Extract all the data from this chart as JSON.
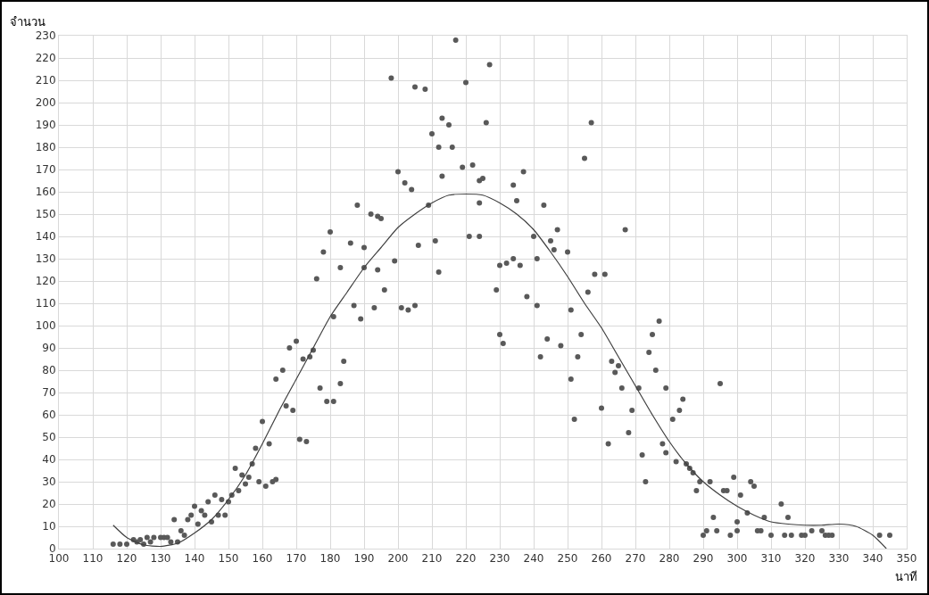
{
  "chart_data": {
    "type": "scatter",
    "xlabel": "นาที",
    "ylabel": "จำนวน",
    "xlim": [
      100,
      350
    ],
    "xticks": [
      100,
      110,
      120,
      130,
      140,
      150,
      160,
      170,
      180,
      190,
      200,
      210,
      220,
      230,
      240,
      250,
      260,
      270,
      280,
      290,
      300,
      310,
      320,
      330,
      340,
      350
    ],
    "ylim": [
      0,
      230
    ],
    "yticks": [
      0,
      10,
      20,
      30,
      40,
      50,
      60,
      70,
      80,
      90,
      100,
      110,
      120,
      130,
      140,
      150,
      160,
      170,
      180,
      190,
      200,
      210,
      220,
      230
    ],
    "grid": true,
    "series": [
      {
        "type": "scatter",
        "color": "#595959",
        "marker": "circle",
        "x": [
          116,
          118,
          120,
          122,
          123,
          124,
          125,
          126,
          127,
          128,
          130,
          131,
          132,
          133,
          134,
          135,
          136,
          137,
          138,
          139,
          140,
          141,
          142,
          143,
          144,
          145,
          146,
          147,
          148,
          149,
          150,
          151,
          152,
          153,
          154,
          155,
          156,
          157,
          158,
          159,
          160,
          161,
          162,
          163,
          164,
          164,
          166,
          167,
          168,
          169,
          170,
          171,
          172,
          173,
          174,
          175,
          176,
          177,
          178,
          179,
          180,
          181,
          181,
          183,
          183,
          184,
          186,
          187,
          188,
          189,
          190,
          190,
          192,
          193,
          194,
          194,
          195,
          196,
          198,
          199,
          200,
          201,
          202,
          203,
          204,
          205,
          205,
          206,
          208,
          209,
          210,
          211,
          212,
          212,
          213,
          213,
          215,
          216,
          217,
          219,
          220,
          221,
          222,
          224,
          224,
          224,
          225,
          226,
          227,
          229,
          230,
          230,
          231,
          232,
          234,
          234,
          235,
          236,
          237,
          238,
          240,
          241,
          241,
          242,
          243,
          244,
          245,
          246,
          247,
          248,
          250,
          251,
          251,
          252,
          253,
          254,
          255,
          256,
          257,
          258,
          260,
          261,
          262,
          263,
          264,
          265,
          266,
          267,
          268,
          269,
          271,
          272,
          273,
          274,
          275,
          276,
          277,
          278,
          279,
          279,
          281,
          282,
          283,
          284,
          285,
          286,
          287,
          288,
          289,
          290,
          291,
          292,
          293,
          294,
          295,
          296,
          297,
          298,
          299,
          300,
          300,
          301,
          303,
          304,
          305,
          306,
          307,
          308,
          310,
          313,
          314,
          315,
          316,
          319,
          320,
          322,
          325,
          326,
          327,
          328,
          342,
          345
        ],
        "values": [
          2,
          2,
          2,
          4,
          3,
          4,
          2,
          5,
          3,
          5,
          5,
          5,
          5,
          3,
          13,
          3,
          8,
          6,
          13,
          15,
          19,
          11,
          17,
          15,
          21,
          12,
          24,
          15,
          22,
          15,
          21,
          24,
          36,
          26,
          33,
          29,
          32,
          38,
          45,
          30,
          57,
          28,
          47,
          30,
          76,
          31,
          80,
          64,
          90,
          62,
          93,
          49,
          85,
          48,
          86,
          89,
          121,
          72,
          133,
          66,
          142,
          66,
          104,
          74,
          126,
          84,
          137,
          109,
          154,
          103,
          135,
          126,
          150,
          108,
          149,
          125,
          148,
          116,
          211,
          129,
          169,
          108,
          164,
          107,
          161,
          207,
          109,
          136,
          206,
          154,
          186,
          138,
          180,
          124,
          193,
          167,
          190,
          180,
          228,
          171,
          209,
          140,
          172,
          155,
          165,
          140,
          166,
          191,
          217,
          116,
          127,
          96,
          92,
          128,
          130,
          163,
          156,
          127,
          169,
          113,
          140,
          130,
          109,
          86,
          154,
          94,
          138,
          134,
          143,
          91,
          133,
          107,
          76,
          58,
          86,
          96,
          175,
          115,
          191,
          123,
          63,
          123,
          47,
          84,
          79,
          82,
          72,
          143,
          52,
          62,
          72,
          42,
          30,
          88,
          96,
          80,
          102,
          47,
          72,
          43,
          58,
          39,
          62,
          67,
          38,
          36,
          34,
          26,
          30,
          6,
          8,
          30,
          14,
          8,
          74,
          26,
          26,
          6,
          32,
          8,
          12,
          24,
          16,
          30,
          28,
          8,
          8,
          14,
          6,
          20,
          6,
          14,
          6,
          6,
          6,
          8,
          8,
          6,
          6,
          6,
          6,
          6
        ]
      },
      {
        "type": "line",
        "color": "#404040",
        "marker": "none",
        "line_style": "solid",
        "x": [
          116,
          120,
          125,
          130,
          135,
          140,
          145,
          150,
          155,
          160,
          165,
          170,
          175,
          180,
          185,
          190,
          195,
          200,
          205,
          210,
          215,
          220,
          225,
          230,
          235,
          240,
          245,
          250,
          255,
          260,
          265,
          270,
          275,
          280,
          285,
          290,
          295,
          300,
          305,
          310,
          315,
          320,
          325,
          330,
          335,
          340,
          344
        ],
        "values": [
          10.5,
          5,
          1.7,
          1,
          2.4,
          7,
          13,
          22,
          33,
          47,
          62,
          76,
          90,
          104,
          115,
          126,
          135,
          144,
          150,
          155,
          158.5,
          159,
          158.5,
          155,
          150,
          143,
          133,
          122,
          110,
          99,
          86,
          73,
          60,
          48,
          38,
          30,
          24,
          19,
          15,
          12,
          11,
          10.5,
          10.5,
          11,
          10,
          6,
          0
        ]
      }
    ]
  }
}
